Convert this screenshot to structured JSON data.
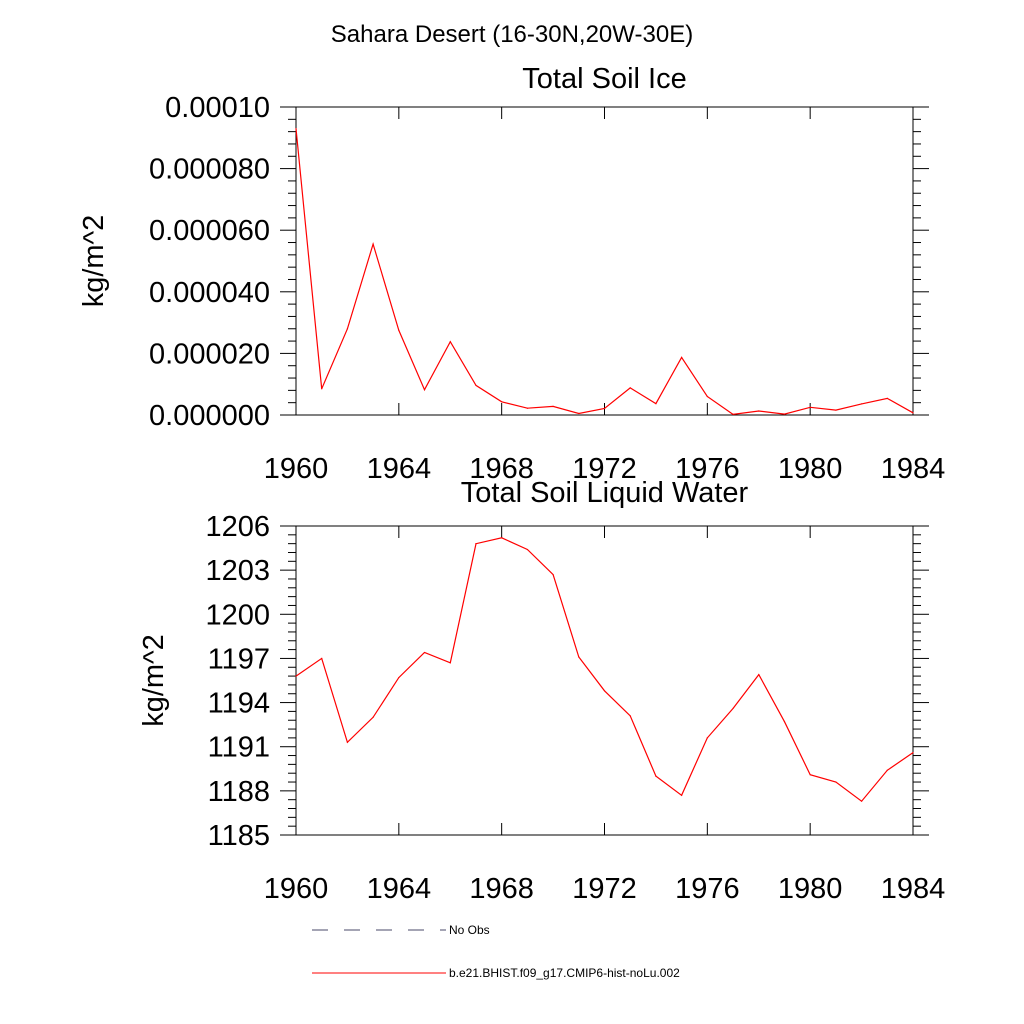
{
  "figure": {
    "suptitle": "Sahara Desert (16-30N,20W-30E)"
  },
  "legend": [
    {
      "label": "No Obs",
      "color": "#4a4a6a",
      "style": "dashed"
    },
    {
      "label": "b.e21.BHIST.f09_g17.CMIP6-hist-noLu.002",
      "color": "#ff0000",
      "style": "solid"
    }
  ],
  "chart_data": [
    {
      "type": "line",
      "title": "Total Soil Ice",
      "xlabel": "",
      "ylabel": "kg/m^2",
      "xlim": [
        1960,
        1984
      ],
      "ylim": [
        0,
        0.0001
      ],
      "xticks": [
        1960,
        1964,
        1968,
        1972,
        1976,
        1980,
        1984
      ],
      "yticks": [
        0,
        2e-05,
        4e-05,
        6e-05,
        8e-05,
        0.0001
      ],
      "yticklabels": [
        "0.000000",
        "0.000020",
        "0.000040",
        "0.000060",
        "0.000080",
        "0.00010"
      ],
      "grid": false,
      "x": [
        1960,
        1961,
        1962,
        1963,
        1964,
        1965,
        1966,
        1967,
        1968,
        1969,
        1970,
        1971,
        1972,
        1973,
        1974,
        1975,
        1976,
        1977,
        1978,
        1979,
        1980,
        1981,
        1982,
        1983,
        1984
      ],
      "series": [
        {
          "name": "b.e21.BHIST.f09_g17.CMIP6-hist-noLu.002",
          "color": "#ff0000",
          "values": [
            9.3e-05,
            8.5e-06,
            2.8e-05,
            5.55e-05,
            2.75e-05,
            8.2e-06,
            2.38e-05,
            9.6e-06,
            4.3e-06,
            2.2e-06,
            2.8e-06,
            5e-07,
            2.1e-06,
            8.8e-06,
            3.7e-06,
            1.87e-05,
            6e-06,
            2e-07,
            1.3e-06,
            3e-07,
            2.5e-06,
            1.6e-06,
            3.6e-06,
            5.4e-06,
            7e-07
          ]
        }
      ]
    },
    {
      "type": "line",
      "title": "Total Soil Liquid Water",
      "xlabel": "",
      "ylabel": "kg/m^2",
      "xlim": [
        1960,
        1984
      ],
      "ylim": [
        1185,
        1206
      ],
      "xticks": [
        1960,
        1964,
        1968,
        1972,
        1976,
        1980,
        1984
      ],
      "yticks": [
        1185,
        1188,
        1191,
        1194,
        1197,
        1200,
        1203,
        1206
      ],
      "yticklabels": [
        "1185",
        "1188",
        "1191",
        "1194",
        "1197",
        "1200",
        "1203",
        "1206"
      ],
      "grid": false,
      "x": [
        1960,
        1961,
        1962,
        1963,
        1964,
        1965,
        1966,
        1967,
        1968,
        1969,
        1970,
        1971,
        1972,
        1973,
        1974,
        1975,
        1976,
        1977,
        1978,
        1979,
        1980,
        1981,
        1982,
        1983,
        1984
      ],
      "series": [
        {
          "name": "b.e21.BHIST.f09_g17.CMIP6-hist-noLu.002",
          "color": "#ff0000",
          "values": [
            1195.8,
            1197.0,
            1191.3,
            1193.0,
            1195.7,
            1197.4,
            1196.7,
            1204.8,
            1205.2,
            1204.4,
            1202.7,
            1197.1,
            1194.8,
            1193.1,
            1189.0,
            1187.7,
            1191.6,
            1193.6,
            1195.9,
            1192.7,
            1189.1,
            1188.6,
            1187.3,
            1189.4,
            1190.6
          ]
        }
      ]
    }
  ]
}
